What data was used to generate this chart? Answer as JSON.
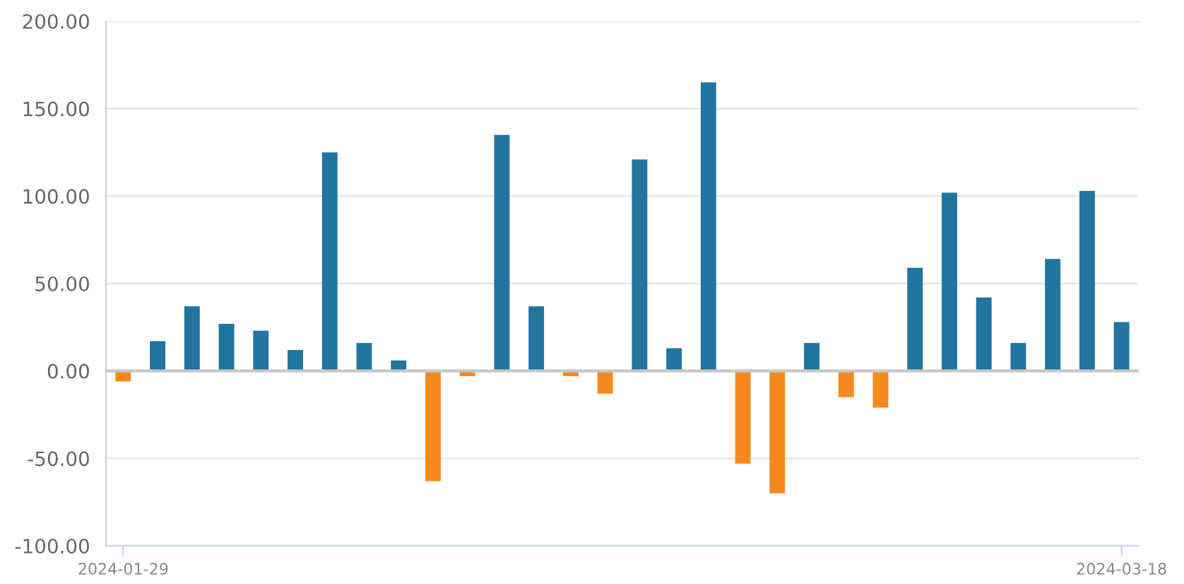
{
  "chart_data": {
    "type": "bar",
    "categories": [
      "2024-01-29",
      null,
      null,
      null,
      null,
      null,
      null,
      null,
      null,
      null,
      null,
      null,
      null,
      null,
      null,
      null,
      null,
      null,
      null,
      null,
      null,
      null,
      null,
      null,
      null,
      null,
      null,
      null,
      null,
      "2024-03-18"
    ],
    "values": [
      -6,
      17,
      37,
      27,
      23,
      12,
      125,
      16,
      6,
      -63,
      -3,
      135,
      37,
      -3,
      -13,
      121,
      13,
      165,
      -53,
      -70,
      16,
      -15,
      -21,
      59,
      102,
      42,
      16,
      64,
      103,
      28
    ],
    "colors": [
      "#f5891f",
      "#21759f",
      "#21759f",
      "#21759f",
      "#21759f",
      "#21759f",
      "#21759f",
      "#21759f",
      "#21759f",
      "#f5891f",
      "#f5891f",
      "#21759f",
      "#21759f",
      "#f5891f",
      "#f5891f",
      "#21759f",
      "#21759f",
      "#21759f",
      "#f5891f",
      "#f5891f",
      "#21759f",
      "#f5891f",
      "#f5891f",
      "#21759f",
      "#21759f",
      "#21759f",
      "#21759f",
      "#21759f",
      "#21759f",
      "#21759f"
    ],
    "ylim": [
      -100,
      200
    ],
    "yticks": [
      {
        "value": -100,
        "label": "-100.00"
      },
      {
        "value": -50,
        "label": "-50.00"
      },
      {
        "value": 0,
        "label": "0.00"
      },
      {
        "value": 50,
        "label": "50.00"
      },
      {
        "value": 100,
        "label": "100.00"
      },
      {
        "value": 150,
        "label": "150.00"
      },
      {
        "value": 200,
        "label": "200.00"
      }
    ],
    "ref_lines": [
      {
        "axis": "y",
        "value": 0,
        "color": "#c8c8c8"
      }
    ],
    "grid": "y"
  }
}
